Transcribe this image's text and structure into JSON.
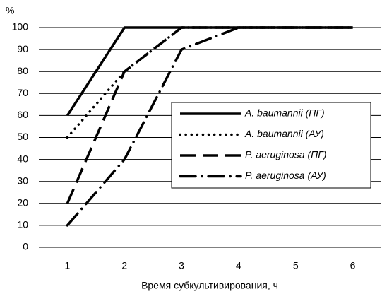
{
  "chart_data": {
    "type": "line",
    "y_label": "%",
    "x_label": "Время субкультивирования, ч",
    "x": [
      1,
      2,
      3,
      4,
      5,
      6
    ],
    "xlim": [
      0.5,
      6.5
    ],
    "xticks": [
      1,
      2,
      3,
      4,
      5,
      6
    ],
    "ylim": [
      0,
      100
    ],
    "yticks": [
      0,
      10,
      20,
      30,
      40,
      50,
      60,
      70,
      80,
      90,
      100
    ],
    "grid": true,
    "legend": "right",
    "series": [
      {
        "name": "A. baumannii (ПГ)",
        "color": "#000000",
        "dash": "solid",
        "values": [
          60,
          100,
          100,
          100,
          100,
          100
        ]
      },
      {
        "name": "A. baumannii (АУ)",
        "color": "#000000",
        "dash": "dotted",
        "values": [
          50,
          80,
          100,
          100,
          100,
          100
        ]
      },
      {
        "name": "P. aeruginosa (ПГ)",
        "color": "#000000",
        "dash": "dashed",
        "values": [
          20,
          80,
          100,
          100,
          100,
          100
        ]
      },
      {
        "name": "P. aeruginosa (АУ)",
        "color": "#000000",
        "dash": "dashdot",
        "values": [
          10,
          40,
          90,
          100,
          100,
          100
        ]
      }
    ]
  }
}
